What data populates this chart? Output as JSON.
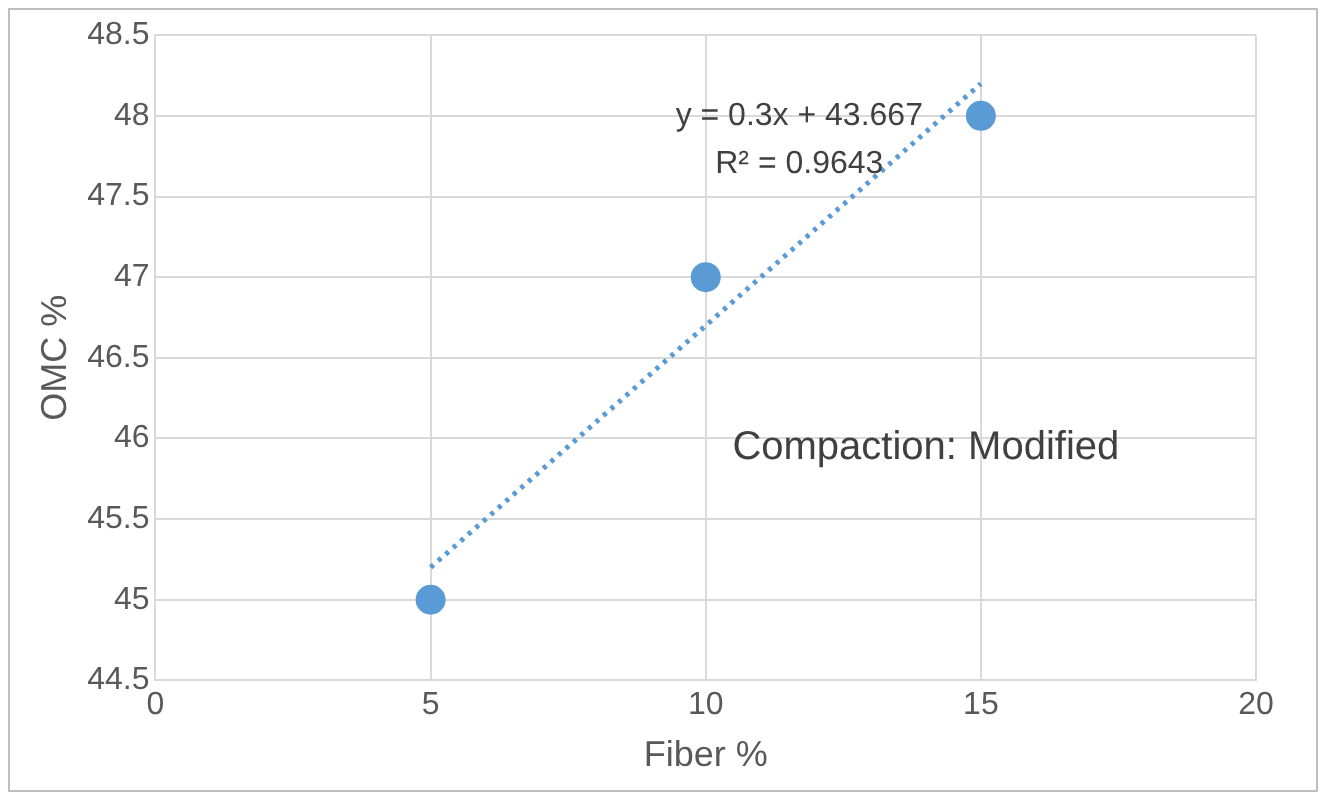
{
  "chart_data": {
    "type": "scatter",
    "xlabel": "Fiber %",
    "ylabel": "OMC %",
    "x": [
      5,
      10,
      15
    ],
    "series": [
      {
        "color": "#5b9bd5",
        "values": [
          45,
          47,
          48
        ],
        "marker": "circle"
      },
      {
        "type": "line",
        "color": "#5b9bd5",
        "x": [
          5,
          15
        ],
        "values": [
          45.2,
          48.2
        ],
        "marker": "none",
        "line_style": "dotted"
      }
    ],
    "xlim": [
      0,
      20
    ],
    "xticks": [
      0,
      5,
      10,
      15,
      20
    ],
    "ylim": [
      44.5,
      48.5
    ],
    "yticks": [
      44.5,
      45,
      45.5,
      46,
      46.5,
      47,
      47.5,
      48,
      48.5
    ],
    "grid": true,
    "legend": false,
    "annotations": [
      "y = 0.3x + 43.667",
      "R² = 0.9643",
      "Compaction: Modified"
    ]
  }
}
